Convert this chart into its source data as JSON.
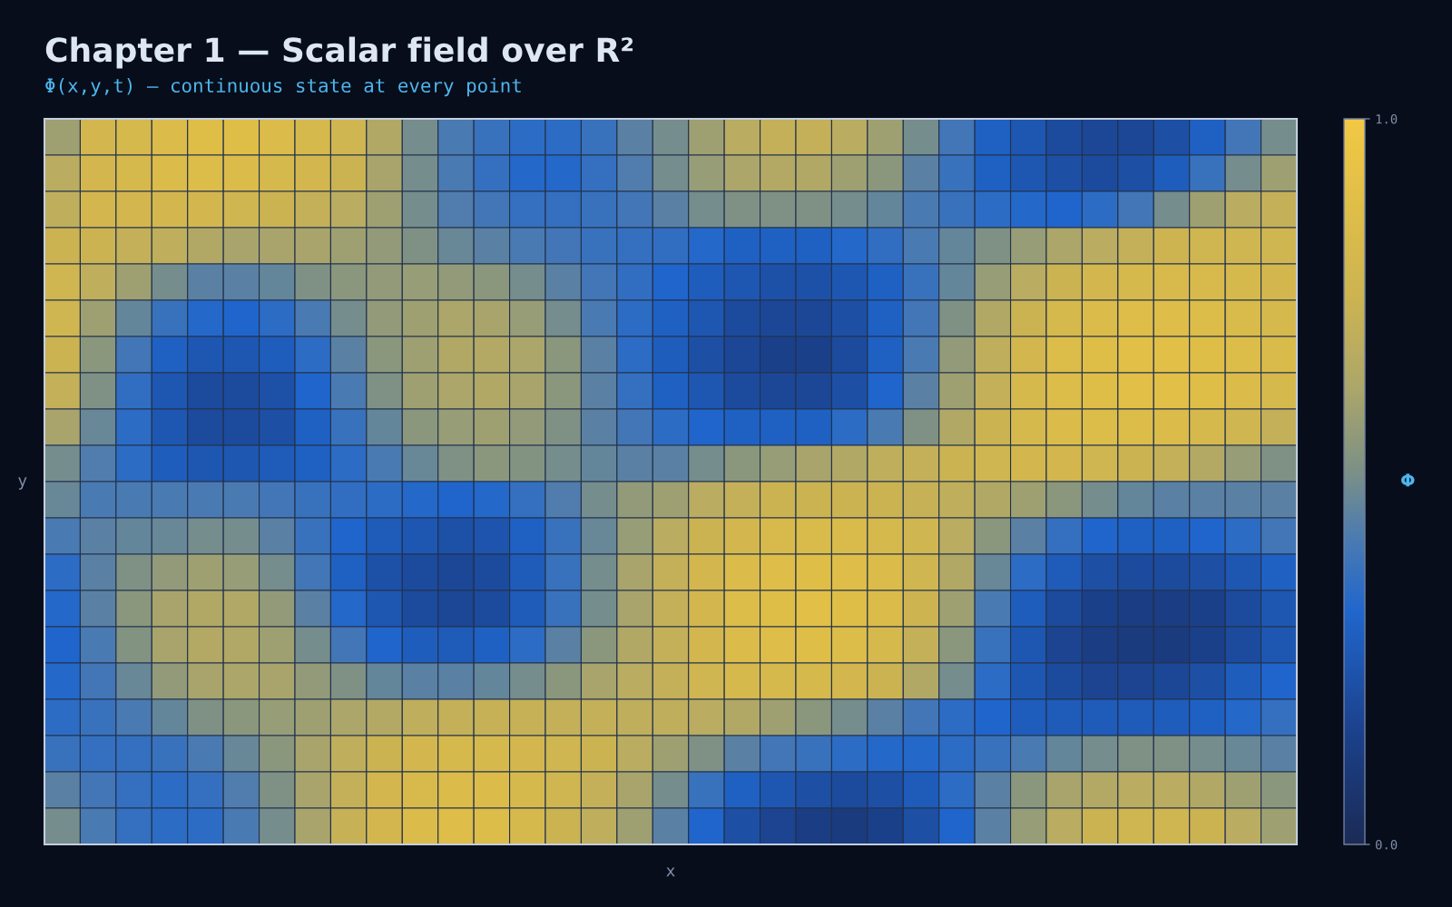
{
  "chart_data": {
    "type": "heatmap",
    "title": "Chapter 1 — Scalar field over R²",
    "subtitle": "Φ(x,y,t) — continuous state at every point",
    "xlabel": "x",
    "ylabel": "y",
    "clabel": "Φ",
    "categories": [
      null,
      null,
      null,
      null,
      null,
      null,
      null,
      null,
      null,
      null,
      null,
      null,
      null,
      null,
      null,
      null,
      null,
      null,
      null,
      null,
      null,
      null,
      null,
      null,
      null,
      null,
      null,
      null,
      null,
      null,
      null,
      null,
      null,
      null,
      null
    ],
    "y_categories": [
      null,
      null,
      null,
      null,
      null,
      null,
      null,
      null,
      null,
      null,
      null,
      null,
      null,
      null,
      null,
      null,
      null,
      null,
      null,
      null
    ],
    "clim": [
      0,
      1
    ],
    "cticks": [
      {
        "value": 0,
        "label": "0.0"
      },
      {
        "value": 1,
        "label": "1.0"
      }
    ],
    "cells": [
      [
        0.6,
        0.8,
        0.82,
        0.85,
        0.88,
        0.88,
        0.85,
        0.82,
        0.78,
        0.65,
        0.5,
        0.42,
        0.38,
        0.35,
        0.35,
        0.38,
        0.45,
        0.5,
        0.6,
        0.68,
        0.72,
        0.72,
        0.68,
        0.6,
        0.5,
        0.4,
        0.3,
        0.25,
        0.2,
        0.18,
        0.18,
        0.22,
        0.3,
        0.4,
        0.5
      ],
      [
        0.68,
        0.8,
        0.82,
        0.85,
        0.86,
        0.85,
        0.82,
        0.8,
        0.75,
        0.62,
        0.5,
        0.42,
        0.37,
        0.33,
        0.33,
        0.37,
        0.43,
        0.5,
        0.58,
        0.63,
        0.66,
        0.65,
        0.6,
        0.55,
        0.45,
        0.38,
        0.3,
        0.25,
        0.22,
        0.2,
        0.22,
        0.28,
        0.38,
        0.5,
        0.6
      ],
      [
        0.7,
        0.8,
        0.8,
        0.8,
        0.8,
        0.78,
        0.75,
        0.72,
        0.68,
        0.6,
        0.5,
        0.43,
        0.4,
        0.37,
        0.37,
        0.38,
        0.4,
        0.45,
        0.5,
        0.52,
        0.52,
        0.52,
        0.5,
        0.47,
        0.42,
        0.38,
        0.35,
        0.33,
        0.32,
        0.35,
        0.4,
        0.5,
        0.6,
        0.68,
        0.72
      ],
      [
        0.75,
        0.75,
        0.72,
        0.7,
        0.65,
        0.62,
        0.62,
        0.62,
        0.6,
        0.57,
        0.52,
        0.48,
        0.45,
        0.42,
        0.4,
        0.38,
        0.37,
        0.36,
        0.33,
        0.3,
        0.3,
        0.3,
        0.33,
        0.36,
        0.42,
        0.47,
        0.52,
        0.58,
        0.63,
        0.68,
        0.72,
        0.76,
        0.78,
        0.78,
        0.78
      ],
      [
        0.78,
        0.7,
        0.6,
        0.5,
        0.45,
        0.45,
        0.47,
        0.52,
        0.55,
        0.57,
        0.58,
        0.57,
        0.55,
        0.5,
        0.45,
        0.4,
        0.36,
        0.32,
        0.28,
        0.25,
        0.23,
        0.23,
        0.25,
        0.3,
        0.38,
        0.47,
        0.58,
        0.68,
        0.75,
        0.8,
        0.82,
        0.83,
        0.83,
        0.82,
        0.8
      ],
      [
        0.78,
        0.6,
        0.47,
        0.38,
        0.33,
        0.32,
        0.35,
        0.42,
        0.5,
        0.57,
        0.6,
        0.63,
        0.62,
        0.58,
        0.5,
        0.42,
        0.35,
        0.3,
        0.25,
        0.2,
        0.18,
        0.18,
        0.22,
        0.3,
        0.4,
        0.52,
        0.65,
        0.75,
        0.82,
        0.85,
        0.87,
        0.87,
        0.86,
        0.84,
        0.82
      ],
      [
        0.75,
        0.55,
        0.4,
        0.3,
        0.25,
        0.25,
        0.28,
        0.35,
        0.45,
        0.55,
        0.6,
        0.65,
        0.66,
        0.63,
        0.55,
        0.45,
        0.35,
        0.28,
        0.22,
        0.18,
        0.15,
        0.15,
        0.2,
        0.3,
        0.42,
        0.57,
        0.7,
        0.8,
        0.86,
        0.88,
        0.9,
        0.9,
        0.88,
        0.86,
        0.84
      ],
      [
        0.72,
        0.52,
        0.36,
        0.25,
        0.2,
        0.2,
        0.23,
        0.32,
        0.42,
        0.52,
        0.6,
        0.63,
        0.65,
        0.62,
        0.55,
        0.45,
        0.37,
        0.3,
        0.25,
        0.2,
        0.18,
        0.18,
        0.22,
        0.32,
        0.45,
        0.6,
        0.72,
        0.82,
        0.86,
        0.88,
        0.9,
        0.9,
        0.88,
        0.85,
        0.82
      ],
      [
        0.62,
        0.48,
        0.35,
        0.25,
        0.2,
        0.2,
        0.22,
        0.3,
        0.38,
        0.47,
        0.55,
        0.58,
        0.6,
        0.57,
        0.52,
        0.45,
        0.4,
        0.35,
        0.32,
        0.3,
        0.3,
        0.3,
        0.35,
        0.42,
        0.52,
        0.65,
        0.75,
        0.82,
        0.85,
        0.86,
        0.86,
        0.85,
        0.82,
        0.78,
        0.72
      ],
      [
        0.5,
        0.43,
        0.35,
        0.28,
        0.25,
        0.25,
        0.27,
        0.3,
        0.35,
        0.42,
        0.48,
        0.52,
        0.55,
        0.53,
        0.5,
        0.47,
        0.45,
        0.45,
        0.5,
        0.55,
        0.58,
        0.62,
        0.65,
        0.7,
        0.72,
        0.75,
        0.78,
        0.8,
        0.8,
        0.78,
        0.75,
        0.72,
        0.66,
        0.58,
        0.52
      ],
      [
        0.48,
        0.42,
        0.42,
        0.42,
        0.42,
        0.42,
        0.4,
        0.38,
        0.36,
        0.35,
        0.33,
        0.32,
        0.33,
        0.37,
        0.43,
        0.5,
        0.57,
        0.6,
        0.68,
        0.72,
        0.75,
        0.75,
        0.75,
        0.75,
        0.73,
        0.7,
        0.65,
        0.6,
        0.55,
        0.5,
        0.47,
        0.45,
        0.45,
        0.45,
        0.45
      ],
      [
        0.42,
        0.45,
        0.47,
        0.48,
        0.5,
        0.5,
        0.45,
        0.38,
        0.32,
        0.27,
        0.25,
        0.23,
        0.24,
        0.3,
        0.38,
        0.48,
        0.58,
        0.68,
        0.75,
        0.8,
        0.83,
        0.84,
        0.84,
        0.82,
        0.78,
        0.68,
        0.55,
        0.45,
        0.37,
        0.32,
        0.3,
        0.3,
        0.32,
        0.35,
        0.4
      ],
      [
        0.35,
        0.45,
        0.52,
        0.57,
        0.6,
        0.58,
        0.5,
        0.4,
        0.3,
        0.23,
        0.2,
        0.18,
        0.2,
        0.27,
        0.38,
        0.5,
        0.62,
        0.72,
        0.8,
        0.85,
        0.87,
        0.88,
        0.87,
        0.85,
        0.78,
        0.65,
        0.48,
        0.35,
        0.27,
        0.22,
        0.2,
        0.2,
        0.22,
        0.25,
        0.3
      ],
      [
        0.33,
        0.45,
        0.55,
        0.62,
        0.65,
        0.65,
        0.57,
        0.45,
        0.33,
        0.25,
        0.2,
        0.18,
        0.2,
        0.27,
        0.38,
        0.5,
        0.62,
        0.72,
        0.8,
        0.86,
        0.88,
        0.9,
        0.88,
        0.85,
        0.76,
        0.6,
        0.42,
        0.28,
        0.2,
        0.15,
        0.13,
        0.13,
        0.15,
        0.2,
        0.25
      ],
      [
        0.32,
        0.42,
        0.53,
        0.62,
        0.66,
        0.65,
        0.6,
        0.5,
        0.4,
        0.32,
        0.28,
        0.27,
        0.3,
        0.35,
        0.45,
        0.55,
        0.65,
        0.72,
        0.8,
        0.85,
        0.87,
        0.88,
        0.86,
        0.82,
        0.72,
        0.55,
        0.38,
        0.25,
        0.17,
        0.13,
        0.12,
        0.12,
        0.15,
        0.2,
        0.25
      ],
      [
        0.33,
        0.4,
        0.48,
        0.57,
        0.62,
        0.63,
        0.62,
        0.57,
        0.52,
        0.47,
        0.45,
        0.45,
        0.47,
        0.5,
        0.55,
        0.62,
        0.68,
        0.72,
        0.78,
        0.82,
        0.82,
        0.82,
        0.8,
        0.75,
        0.65,
        0.5,
        0.35,
        0.25,
        0.2,
        0.17,
        0.17,
        0.18,
        0.22,
        0.28,
        0.32
      ],
      [
        0.35,
        0.38,
        0.42,
        0.47,
        0.52,
        0.55,
        0.58,
        0.6,
        0.63,
        0.66,
        0.7,
        0.72,
        0.73,
        0.73,
        0.72,
        0.72,
        0.7,
        0.7,
        0.68,
        0.65,
        0.6,
        0.55,
        0.5,
        0.45,
        0.4,
        0.35,
        0.32,
        0.28,
        0.27,
        0.27,
        0.27,
        0.28,
        0.3,
        0.33,
        0.37
      ],
      [
        0.38,
        0.37,
        0.37,
        0.38,
        0.42,
        0.48,
        0.55,
        0.62,
        0.7,
        0.75,
        0.8,
        0.82,
        0.82,
        0.8,
        0.78,
        0.75,
        0.68,
        0.6,
        0.52,
        0.45,
        0.4,
        0.38,
        0.35,
        0.33,
        0.33,
        0.35,
        0.38,
        0.42,
        0.47,
        0.5,
        0.52,
        0.52,
        0.5,
        0.48,
        0.45
      ],
      [
        0.45,
        0.4,
        0.37,
        0.35,
        0.37,
        0.43,
        0.52,
        0.62,
        0.72,
        0.8,
        0.83,
        0.85,
        0.85,
        0.82,
        0.78,
        0.72,
        0.62,
        0.5,
        0.38,
        0.3,
        0.25,
        0.22,
        0.2,
        0.22,
        0.27,
        0.35,
        0.45,
        0.55,
        0.62,
        0.66,
        0.68,
        0.68,
        0.65,
        0.6,
        0.55
      ],
      [
        0.5,
        0.42,
        0.37,
        0.35,
        0.35,
        0.42,
        0.5,
        0.62,
        0.73,
        0.8,
        0.85,
        0.87,
        0.86,
        0.82,
        0.75,
        0.7,
        0.6,
        0.45,
        0.32,
        0.22,
        0.17,
        0.13,
        0.12,
        0.15,
        0.22,
        0.32,
        0.45,
        0.58,
        0.68,
        0.75,
        0.78,
        0.78,
        0.75,
        0.68,
        0.6
      ]
    ]
  }
}
